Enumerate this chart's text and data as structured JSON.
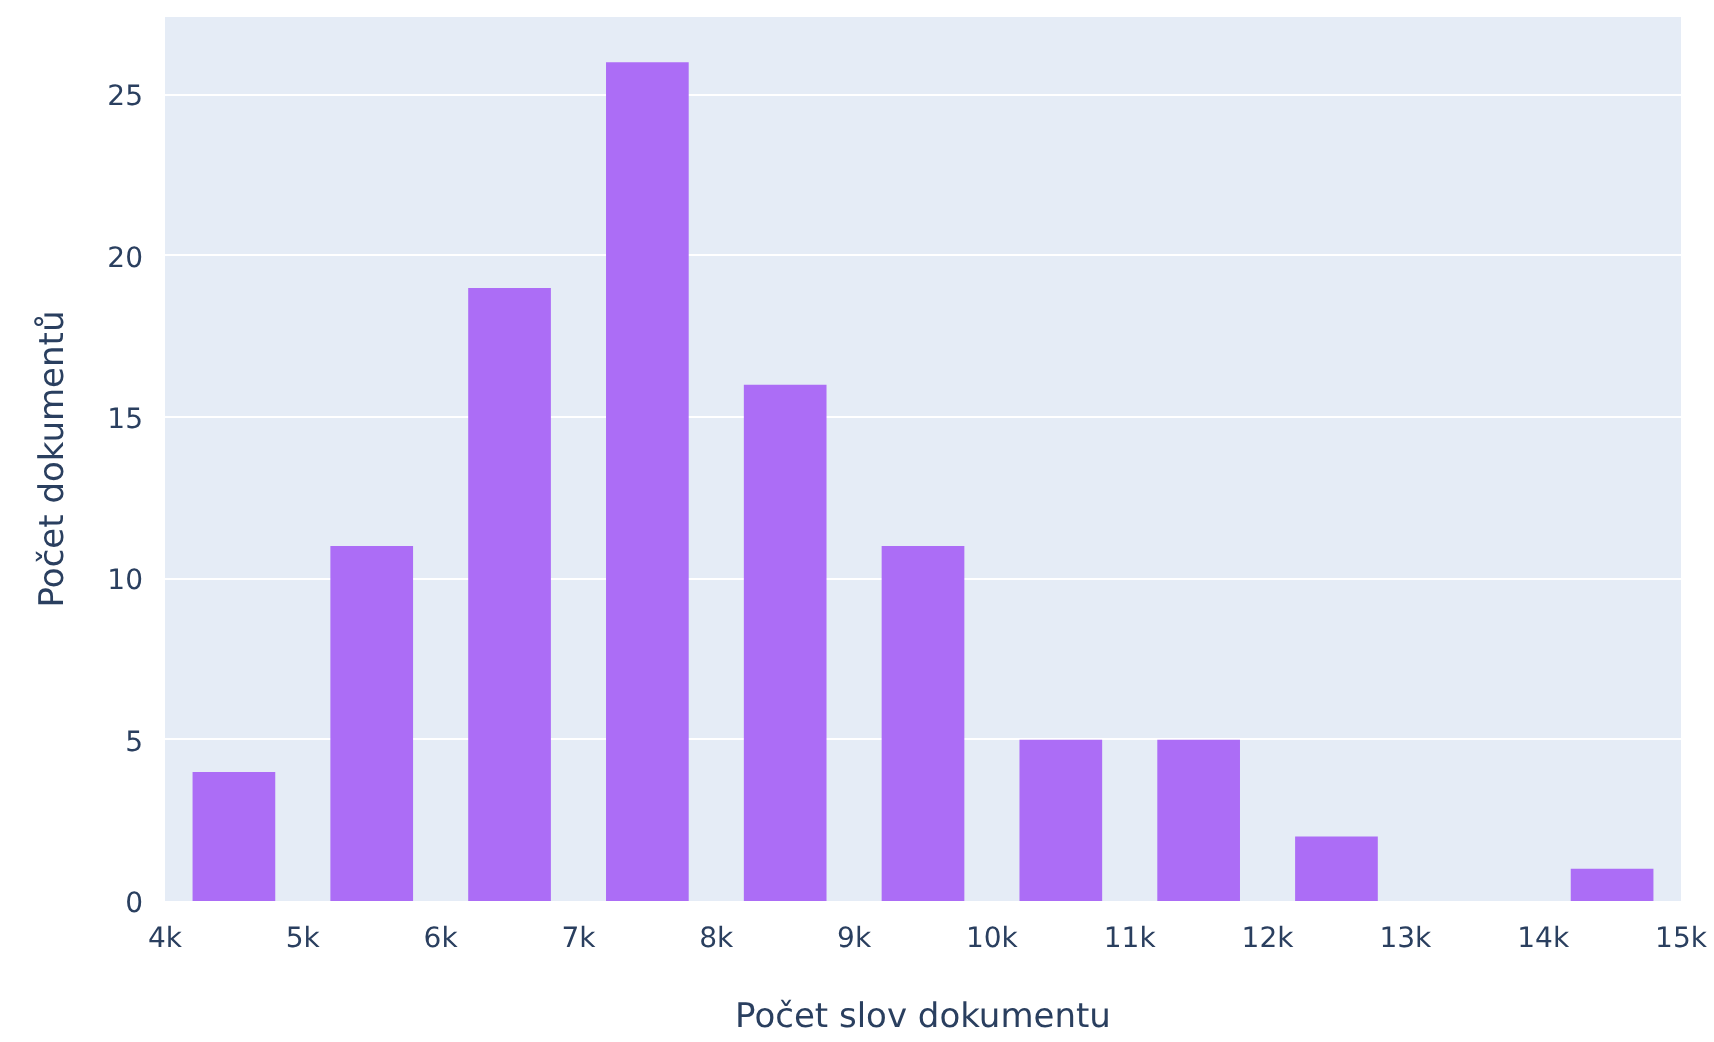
{
  "chart_data": {
    "type": "histogram",
    "xlabel": "Počet slov dokumentu",
    "ylabel": "Počet dokumentů",
    "bins": [
      4000,
      5000,
      6000,
      7000,
      8000,
      9000,
      10000,
      11000,
      12000,
      13000,
      14000,
      15000
    ],
    "values": [
      4,
      11,
      19,
      26,
      16,
      11,
      5,
      5,
      2,
      0,
      1
    ],
    "color": "#ac6df6",
    "xlim": [
      4000,
      15000
    ],
    "xticks": [
      {
        "value": 4000,
        "label": "4k"
      },
      {
        "value": 5000,
        "label": "5k"
      },
      {
        "value": 6000,
        "label": "6k"
      },
      {
        "value": 7000,
        "label": "7k"
      },
      {
        "value": 8000,
        "label": "8k"
      },
      {
        "value": 9000,
        "label": "9k"
      },
      {
        "value": 10000,
        "label": "10k"
      },
      {
        "value": 11000,
        "label": "11k"
      },
      {
        "value": 12000,
        "label": "12k"
      },
      {
        "value": 13000,
        "label": "13k"
      },
      {
        "value": 14000,
        "label": "14k"
      },
      {
        "value": 15000,
        "label": "15k"
      }
    ],
    "ylim": [
      0,
      27.4
    ],
    "yticks": [
      0,
      5,
      10,
      15,
      20,
      25
    ],
    "grid": "y"
  }
}
